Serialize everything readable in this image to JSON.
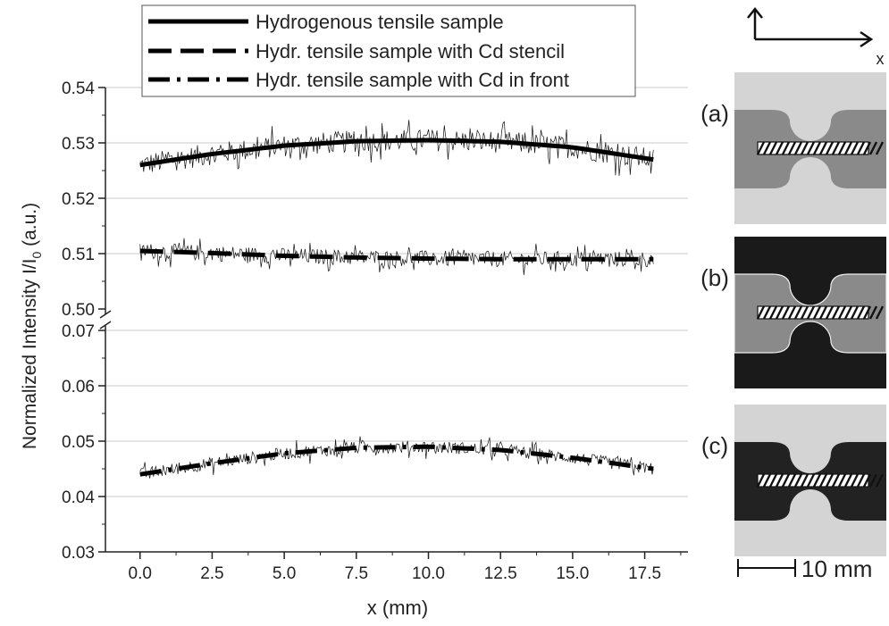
{
  "chart_data": {
    "type": "line",
    "xlabel": "x (mm)",
    "ylabel": {
      "main": "Normalized Intensity I/I",
      "subscript": "0",
      "suffix": " (a.u.)"
    },
    "x_ticks": [
      "0.0",
      "2.5",
      "5.0",
      "7.5",
      "10.0",
      "12.5",
      "15.0",
      "17.5"
    ],
    "x_tick_values": [
      0,
      2.5,
      5,
      7.5,
      10,
      12.5,
      15,
      17.5
    ],
    "xlim": [
      -1.2,
      19
    ],
    "y_axis_break": true,
    "upper_panel": {
      "ylim": [
        0.5,
        0.54
      ],
      "ticks": [
        "0.50",
        "0.51",
        "0.52",
        "0.53",
        "0.54"
      ],
      "tick_values": [
        0.5,
        0.51,
        0.52,
        0.53,
        0.54
      ]
    },
    "lower_panel": {
      "ylim": [
        0.03,
        0.07
      ],
      "ticks": [
        "0.03",
        "0.04",
        "0.05",
        "0.06",
        "0.07"
      ],
      "tick_values": [
        0.03,
        0.04,
        0.05,
        0.06,
        0.07
      ]
    },
    "grid": true,
    "legend_position": "top",
    "series": [
      {
        "name": "Hydrogenous tensile sample",
        "style": "solid",
        "panel": "upper",
        "x": [
          0,
          2.5,
          5,
          7.5,
          10,
          12.5,
          15,
          17.8
        ],
        "y": [
          0.526,
          0.528,
          0.5295,
          0.5303,
          0.5305,
          0.5302,
          0.5292,
          0.527
        ],
        "noise": 0.0025
      },
      {
        "name": "Hydr. tensile sample with Cd stencil",
        "style": "dashed",
        "panel": "upper",
        "x": [
          0,
          2.5,
          5,
          7.5,
          10,
          12.5,
          15,
          17.8
        ],
        "y": [
          0.5105,
          0.5101,
          0.5096,
          0.5093,
          0.5091,
          0.509,
          0.509,
          0.509
        ],
        "noise": 0.0018
      },
      {
        "name": "Hydr. tensile sample with Cd in front",
        "style": "dashdot",
        "panel": "lower",
        "x": [
          0,
          2.5,
          5,
          7.5,
          10,
          12.5,
          15,
          17.8
        ],
        "y": [
          0.044,
          0.046,
          0.0478,
          0.0488,
          0.049,
          0.0484,
          0.047,
          0.045
        ],
        "noise": 0.0014
      }
    ]
  },
  "insets": [
    {
      "label": "(a)",
      "variant": "light"
    },
    {
      "label": "(b)",
      "variant": "dark"
    },
    {
      "label": "(c)",
      "variant": "inverted"
    }
  ],
  "scale_bar": {
    "label": "10 mm"
  },
  "axes_indicator": {
    "x_label": "x"
  },
  "colors": {
    "light_bg": "#d4d4d4",
    "sample_mid": "#8a8a8a",
    "dark_bg": "#1a1a1a",
    "inverted_sample": "#222222"
  }
}
